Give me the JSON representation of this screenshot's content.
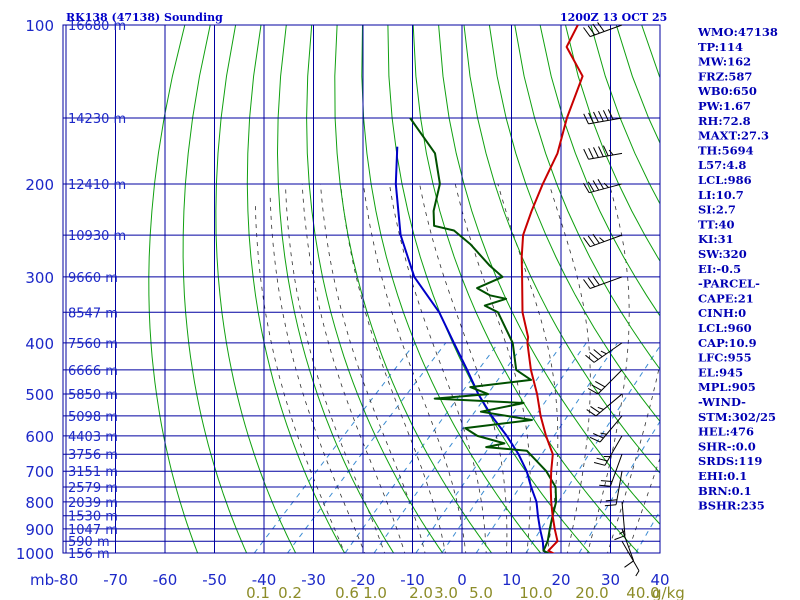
{
  "header": {
    "station": "RK138 (47138) Sounding",
    "time": "1200Z 13 OCT 25"
  },
  "indices": [
    "WMO:47138",
    "TP:114",
    "MW:162",
    "FRZ:587",
    "WB0:650",
    "PW:1.67",
    "RH:72.8",
    "MAXT:27.3",
    "TH:5694",
    "L57:4.8",
    "LCL:986",
    "LI:10.7",
    "SI:2.7",
    "TT:40",
    "KI:31",
    "SW:320",
    "EI:-0.5",
    "-PARCEL-",
    "CAPE:21",
    "CINH:0",
    "LCL:960",
    "CAP:10.9",
    "LFC:955",
    "EL:945",
    "MPL:905",
    "-WIND-",
    "STM:302/25",
    "HEL:476",
    "SHR-:0.0",
    "SRDS:119",
    "EHI:0.1",
    "BRN:0.1",
    "BSHR:235"
  ],
  "colors": {
    "grid": "#0000a0",
    "dry_adiabat": "#10a010",
    "moist_adiabat": "#303030",
    "mixing_ratio": "#3c8cd2",
    "temperature": "#c80000",
    "dewpoint": "#005000",
    "parcel": "#0000c8",
    "labels": "#1c28c8",
    "mixing_labels": "#8c8c28"
  },
  "chart_data": {
    "type": "skew-t",
    "y_unit": "mb",
    "pressure_levels": [
      100,
      200,
      300,
      400,
      500,
      600,
      700,
      800,
      900,
      1000
    ],
    "heights": [
      {
        "p": 100,
        "label": "16680 m"
      },
      {
        "p": 150,
        "label": "14230 m"
      },
      {
        "p": 200,
        "label": "12410 m"
      },
      {
        "p": 250,
        "label": "10930 m"
      },
      {
        "p": 300,
        "label": "9660 m"
      },
      {
        "p": 350,
        "label": "8547 m"
      },
      {
        "p": 400,
        "label": "7560 m"
      },
      {
        "p": 450,
        "label": "6666 m"
      },
      {
        "p": 500,
        "label": "5850 m"
      },
      {
        "p": 550,
        "label": "5098 m"
      },
      {
        "p": 600,
        "label": "4403 m"
      },
      {
        "p": 650,
        "label": "3756 m"
      },
      {
        "p": 700,
        "label": "3151 m"
      },
      {
        "p": 750,
        "label": "2579 m"
      },
      {
        "p": 800,
        "label": "2039 m"
      },
      {
        "p": 850,
        "label": "1530 m"
      },
      {
        "p": 900,
        "label": "1047 m"
      },
      {
        "p": 950,
        "label": "590 m"
      },
      {
        "p": 1000,
        "label": "156 m"
      }
    ],
    "x_ticks": [
      -80,
      -70,
      -60,
      -50,
      -40,
      -30,
      -20,
      -10,
      0,
      10,
      20,
      30,
      40
    ],
    "x_tick_labels": [
      "-80",
      "-70",
      "-60",
      "-50",
      "-40",
      "-30",
      "-20",
      "-10",
      "0",
      "10",
      "20",
      "30",
      "40"
    ],
    "mixing_ratio_labels": [
      {
        "w": 0.1,
        "label": "0.1"
      },
      {
        "w": 0.2,
        "label": "0.2"
      },
      {
        "w": 0.6,
        "label": "0.6"
      },
      {
        "w": 1.0,
        "label": "1.0"
      },
      {
        "w": 2.0,
        "label": "2.0"
      },
      {
        "w": 3.0,
        "label": "3.0"
      },
      {
        "w": 5.0,
        "label": "5.0"
      },
      {
        "w": 10.0,
        "label": "10.0"
      },
      {
        "w": 20.0,
        "label": "20.0"
      },
      {
        "w": 40.0,
        "label": "40.0"
      }
    ],
    "mixing_ratio_unit": "g/kg",
    "temperature": [
      {
        "p": 100,
        "t": -79
      },
      {
        "p": 110,
        "t": -77
      },
      {
        "p": 125,
        "t": -68
      },
      {
        "p": 150,
        "t": -63
      },
      {
        "p": 175,
        "t": -58
      },
      {
        "p": 200,
        "t": -55
      },
      {
        "p": 225,
        "t": -52
      },
      {
        "p": 250,
        "t": -49
      },
      {
        "p": 275,
        "t": -45
      },
      {
        "p": 300,
        "t": -41
      },
      {
        "p": 350,
        "t": -34
      },
      {
        "p": 390,
        "t": -28
      },
      {
        "p": 400,
        "t": -27
      },
      {
        "p": 450,
        "t": -21
      },
      {
        "p": 500,
        "t": -15
      },
      {
        "p": 550,
        "t": -10
      },
      {
        "p": 600,
        "t": -5
      },
      {
        "p": 650,
        "t": 0
      },
      {
        "p": 700,
        "t": 3
      },
      {
        "p": 750,
        "t": 6
      },
      {
        "p": 800,
        "t": 9
      },
      {
        "p": 850,
        "t": 12
      },
      {
        "p": 900,
        "t": 15
      },
      {
        "p": 950,
        "t": 18
      },
      {
        "p": 990,
        "t": 18
      },
      {
        "p": 1005,
        "t": 20
      }
    ],
    "dewpoint": [
      {
        "p": 150,
        "t": -95
      },
      {
        "p": 175,
        "t": -83
      },
      {
        "p": 200,
        "t": -76
      },
      {
        "p": 225,
        "t": -72
      },
      {
        "p": 240,
        "t": -69
      },
      {
        "p": 245,
        "t": -64
      },
      {
        "p": 260,
        "t": -58
      },
      {
        "p": 285,
        "t": -50
      },
      {
        "p": 300,
        "t": -45
      },
      {
        "p": 315,
        "t": -48
      },
      {
        "p": 325,
        "t": -44
      },
      {
        "p": 330,
        "t": -40
      },
      {
        "p": 340,
        "t": -43
      },
      {
        "p": 350,
        "t": -39
      },
      {
        "p": 400,
        "t": -30
      },
      {
        "p": 450,
        "t": -24
      },
      {
        "p": 470,
        "t": -19
      },
      {
        "p": 485,
        "t": -30
      },
      {
        "p": 500,
        "t": -25
      },
      {
        "p": 510,
        "t": -35
      },
      {
        "p": 520,
        "t": -16
      },
      {
        "p": 540,
        "t": -23
      },
      {
        "p": 560,
        "t": -11
      },
      {
        "p": 580,
        "t": -23
      },
      {
        "p": 600,
        "t": -19
      },
      {
        "p": 620,
        "t": -12
      },
      {
        "p": 630,
        "t": -15
      },
      {
        "p": 640,
        "t": -6
      },
      {
        "p": 700,
        "t": 2
      },
      {
        "p": 750,
        "t": 7
      },
      {
        "p": 800,
        "t": 10
      },
      {
        "p": 850,
        "t": 12
      },
      {
        "p": 900,
        "t": 14
      },
      {
        "p": 950,
        "t": 16
      },
      {
        "p": 990,
        "t": 17
      },
      {
        "p": 1005,
        "t": 19
      }
    ],
    "parcel": [
      {
        "p": 170,
        "t": -92
      },
      {
        "p": 200,
        "t": -85
      },
      {
        "p": 250,
        "t": -74
      },
      {
        "p": 300,
        "t": -63
      },
      {
        "p": 350,
        "t": -51
      },
      {
        "p": 400,
        "t": -42
      },
      {
        "p": 450,
        "t": -34
      },
      {
        "p": 500,
        "t": -27
      },
      {
        "p": 550,
        "t": -20
      },
      {
        "p": 600,
        "t": -13
      },
      {
        "p": 650,
        "t": -7
      },
      {
        "p": 700,
        "t": -2
      },
      {
        "p": 750,
        "t": 2
      },
      {
        "p": 800,
        "t": 6
      },
      {
        "p": 850,
        "t": 9
      },
      {
        "p": 900,
        "t": 12
      },
      {
        "p": 950,
        "t": 15
      },
      {
        "p": 990,
        "t": 17
      },
      {
        "p": 1005,
        "t": 19
      }
    ],
    "wind_barbs": [
      {
        "p": 100,
        "dir": 250,
        "spd": 40
      },
      {
        "p": 150,
        "dir": 260,
        "spd": 60
      },
      {
        "p": 175,
        "dir": 260,
        "spd": 55
      },
      {
        "p": 200,
        "dir": 255,
        "spd": 45
      },
      {
        "p": 250,
        "dir": 250,
        "spd": 35
      },
      {
        "p": 300,
        "dir": 250,
        "spd": 30
      },
      {
        "p": 400,
        "dir": 235,
        "spd": 35
      },
      {
        "p": 450,
        "dir": 225,
        "spd": 30
      },
      {
        "p": 500,
        "dir": 230,
        "spd": 25
      },
      {
        "p": 550,
        "dir": 220,
        "spd": 25
      },
      {
        "p": 600,
        "dir": 210,
        "spd": 25
      },
      {
        "p": 650,
        "dir": 200,
        "spd": 20
      },
      {
        "p": 700,
        "dir": 190,
        "spd": 20
      },
      {
        "p": 800,
        "dir": 175,
        "spd": 15
      },
      {
        "p": 900,
        "dir": 160,
        "spd": 10
      },
      {
        "p": 950,
        "dir": 150,
        "spd": 5
      }
    ]
  }
}
